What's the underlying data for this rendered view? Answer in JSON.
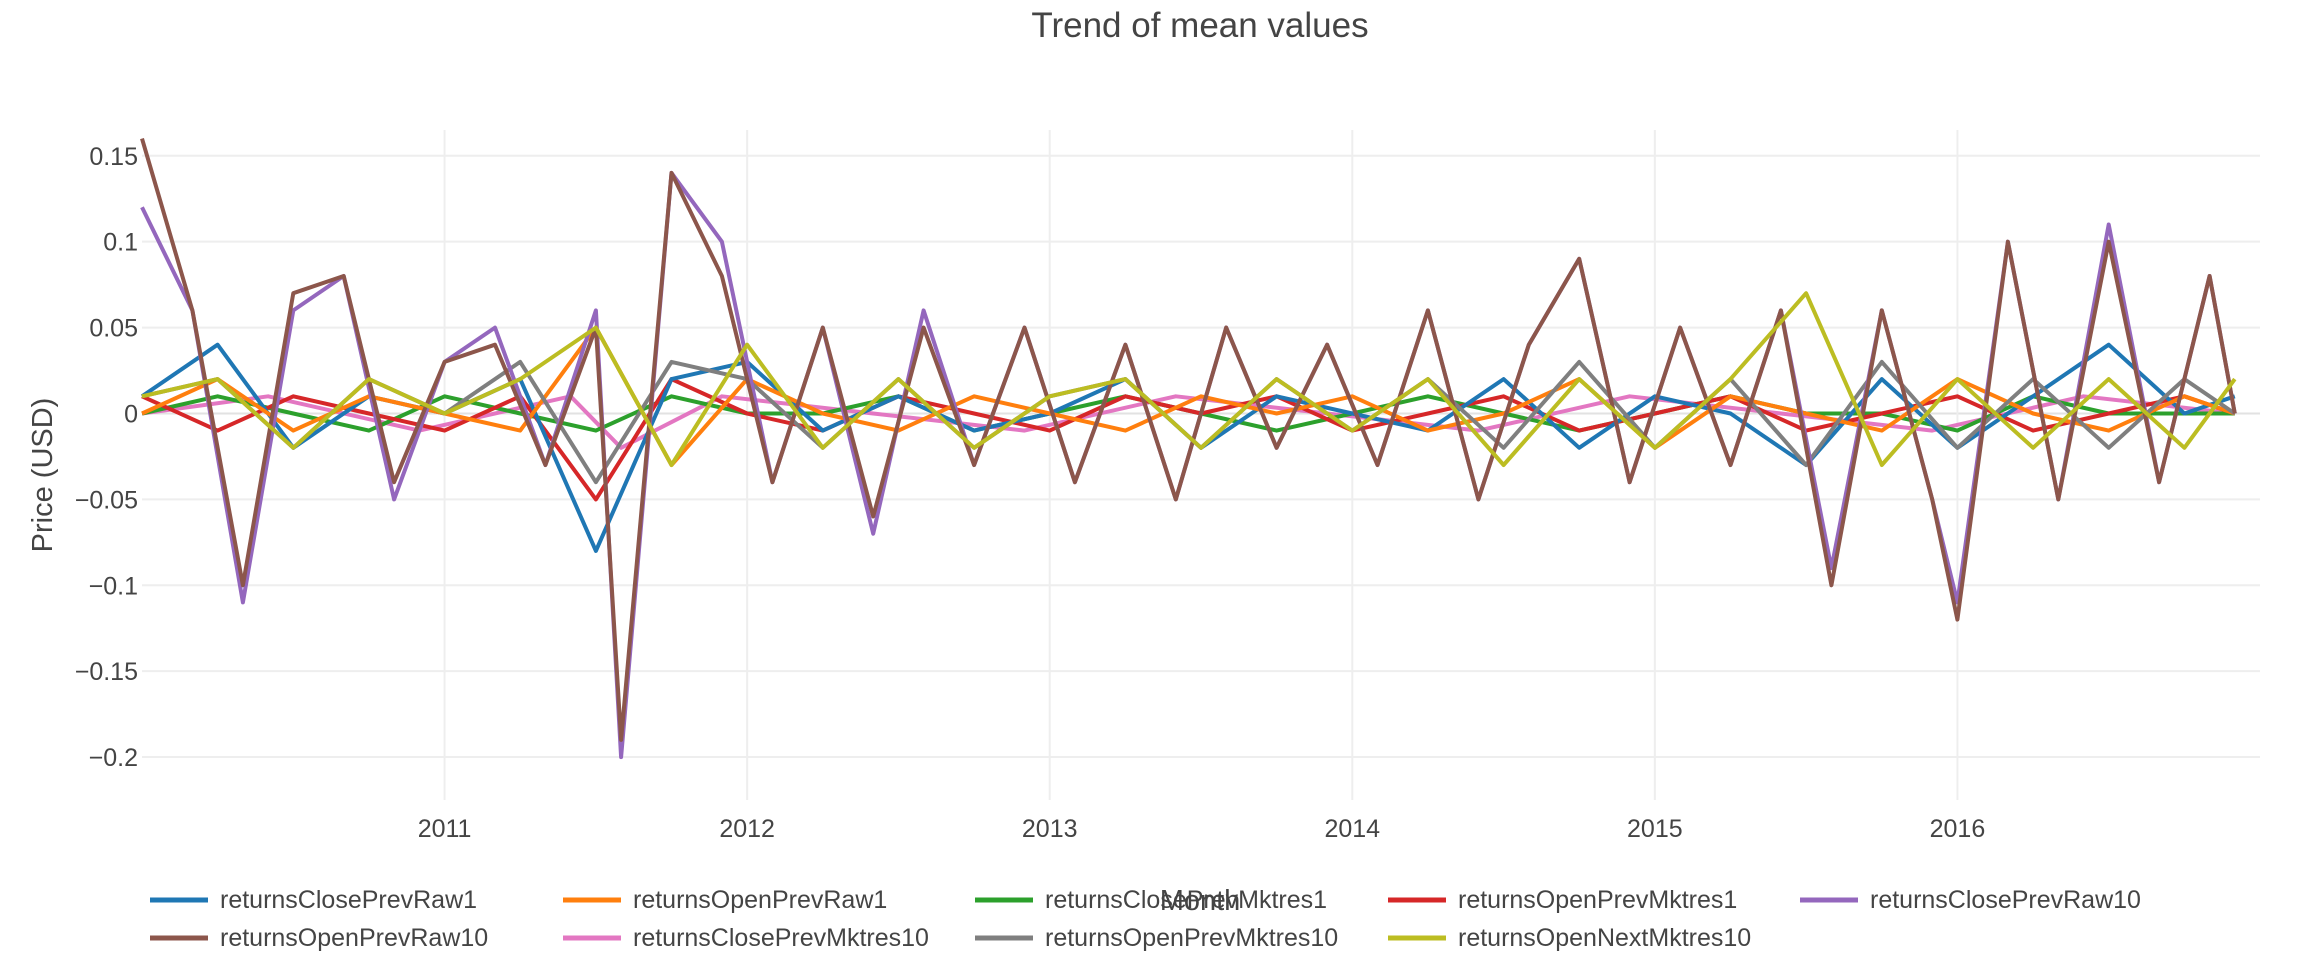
{
  "chart_data": {
    "type": "line",
    "title": "Trend of mean values",
    "xlabel": "Month",
    "ylabel": "Price (USD)",
    "x_range": [
      "2010-01",
      "2016-12"
    ],
    "xtick_labels": [
      "2011",
      "2012",
      "2013",
      "2014",
      "2015",
      "2016"
    ],
    "ylim": [
      -0.225,
      0.165
    ],
    "ytick_values": [
      0.15,
      0.1,
      0.05,
      0,
      -0.05,
      -0.1,
      -0.15,
      -0.2
    ],
    "ytick_labels": [
      "0.15",
      "0.1",
      "0.05",
      "0",
      "−0.05",
      "−0.1",
      "−0.15",
      "−0.2"
    ],
    "grid": true,
    "legend_position": "bottom",
    "series": [
      {
        "name": "returnsClosePrevRaw1",
        "color": "#1f77b4",
        "x": [
          "2010-01",
          "2010-04",
          "2010-07",
          "2010-10",
          "2011-01",
          "2011-04",
          "2011-07",
          "2011-10",
          "2012-01",
          "2012-04",
          "2012-07",
          "2012-10",
          "2013-01",
          "2013-04",
          "2013-07",
          "2013-10",
          "2014-01",
          "2014-04",
          "2014-07",
          "2014-10",
          "2015-01",
          "2015-04",
          "2015-07",
          "2015-10",
          "2016-01",
          "2016-04",
          "2016-07",
          "2016-10",
          "2016-12"
        ],
        "y": [
          0.01,
          0.04,
          -0.02,
          0.01,
          0.0,
          0.02,
          -0.08,
          0.02,
          0.03,
          -0.01,
          0.01,
          -0.01,
          0.0,
          0.02,
          -0.02,
          0.01,
          0.0,
          -0.01,
          0.02,
          -0.02,
          0.01,
          0.0,
          -0.03,
          0.02,
          -0.02,
          0.01,
          0.04,
          0.0,
          0.01
        ]
      },
      {
        "name": "returnsOpenPrevRaw1",
        "color": "#ff7f0e",
        "x": [
          "2010-01",
          "2010-04",
          "2010-07",
          "2010-10",
          "2011-01",
          "2011-04",
          "2011-07",
          "2011-10",
          "2012-01",
          "2012-04",
          "2012-07",
          "2012-10",
          "2013-01",
          "2013-04",
          "2013-07",
          "2013-10",
          "2014-01",
          "2014-04",
          "2014-07",
          "2014-10",
          "2015-01",
          "2015-04",
          "2015-07",
          "2015-10",
          "2016-01",
          "2016-04",
          "2016-07",
          "2016-10",
          "2016-12"
        ],
        "y": [
          0.0,
          0.02,
          -0.01,
          0.01,
          0.0,
          -0.01,
          0.05,
          -0.03,
          0.02,
          0.0,
          -0.01,
          0.01,
          0.0,
          -0.01,
          0.01,
          0.0,
          0.01,
          -0.01,
          0.0,
          0.02,
          -0.02,
          0.01,
          0.0,
          -0.01,
          0.02,
          0.0,
          -0.01,
          0.01,
          0.0
        ]
      },
      {
        "name": "returnsClosePrevMktres1",
        "color": "#2ca02c",
        "x": [
          "2010-01",
          "2010-04",
          "2010-07",
          "2010-10",
          "2011-01",
          "2011-04",
          "2011-07",
          "2011-10",
          "2012-01",
          "2012-04",
          "2012-07",
          "2012-10",
          "2013-01",
          "2013-04",
          "2013-07",
          "2013-10",
          "2014-01",
          "2014-04",
          "2014-07",
          "2014-10",
          "2015-01",
          "2015-04",
          "2015-07",
          "2015-10",
          "2016-01",
          "2016-04",
          "2016-07",
          "2016-10",
          "2016-12"
        ],
        "y": [
          0.0,
          0.01,
          0.0,
          -0.01,
          0.01,
          0.0,
          -0.01,
          0.01,
          0.0,
          0.0,
          0.01,
          -0.01,
          0.0,
          0.01,
          0.0,
          -0.01,
          0.0,
          0.01,
          0.0,
          -0.01,
          0.0,
          0.01,
          0.0,
          0.0,
          -0.01,
          0.01,
          0.0,
          0.0,
          0.0
        ]
      },
      {
        "name": "returnsOpenPrevMktres1",
        "color": "#d62728",
        "x": [
          "2010-01",
          "2010-04",
          "2010-07",
          "2010-10",
          "2011-01",
          "2011-04",
          "2011-07",
          "2011-10",
          "2012-01",
          "2012-04",
          "2012-07",
          "2012-10",
          "2013-01",
          "2013-04",
          "2013-07",
          "2013-10",
          "2014-01",
          "2014-04",
          "2014-07",
          "2014-10",
          "2015-01",
          "2015-04",
          "2015-07",
          "2015-10",
          "2016-01",
          "2016-04",
          "2016-07",
          "2016-10",
          "2016-12"
        ],
        "y": [
          0.01,
          -0.01,
          0.01,
          0.0,
          -0.01,
          0.01,
          -0.05,
          0.02,
          0.0,
          -0.01,
          0.01,
          0.0,
          -0.01,
          0.01,
          0.0,
          0.01,
          -0.01,
          0.0,
          0.01,
          -0.01,
          0.0,
          0.01,
          -0.01,
          0.0,
          0.01,
          -0.01,
          0.0,
          0.01,
          0.0
        ]
      },
      {
        "name": "returnsClosePrevRaw10",
        "color": "#9467bd",
        "x": [
          "2010-01",
          "2010-03",
          "2010-05",
          "2010-07",
          "2010-09",
          "2010-11",
          "2011-01",
          "2011-03",
          "2011-05",
          "2011-07",
          "2011-08",
          "2011-10",
          "2011-12",
          "2012-02",
          "2012-04",
          "2012-06",
          "2012-08",
          "2012-10",
          "2012-12",
          "2013-02",
          "2013-04",
          "2013-06",
          "2013-08",
          "2013-10",
          "2013-12",
          "2014-02",
          "2014-04",
          "2014-06",
          "2014-08",
          "2014-10",
          "2014-12",
          "2015-02",
          "2015-04",
          "2015-06",
          "2015-08",
          "2015-10",
          "2015-12",
          "2016-01",
          "2016-03",
          "2016-05",
          "2016-07",
          "2016-09",
          "2016-11",
          "2016-12"
        ],
        "y": [
          0.12,
          0.06,
          -0.11,
          0.06,
          0.08,
          -0.05,
          0.03,
          0.05,
          -0.03,
          0.06,
          -0.2,
          0.14,
          0.1,
          -0.04,
          0.05,
          -0.07,
          0.06,
          -0.03,
          0.05,
          -0.04,
          0.04,
          -0.05,
          0.05,
          -0.02,
          0.04,
          -0.03,
          0.06,
          -0.05,
          0.04,
          0.09,
          -0.04,
          0.05,
          -0.03,
          0.06,
          -0.09,
          0.06,
          -0.05,
          -0.11,
          0.1,
          -0.05,
          0.11,
          -0.04,
          0.08,
          0.0
        ]
      },
      {
        "name": "returnsOpenPrevRaw10",
        "color": "#8c564b",
        "x": [
          "2010-01",
          "2010-03",
          "2010-05",
          "2010-07",
          "2010-09",
          "2010-11",
          "2011-01",
          "2011-03",
          "2011-05",
          "2011-07",
          "2011-08",
          "2011-10",
          "2011-12",
          "2012-02",
          "2012-04",
          "2012-06",
          "2012-08",
          "2012-10",
          "2012-12",
          "2013-02",
          "2013-04",
          "2013-06",
          "2013-08",
          "2013-10",
          "2013-12",
          "2014-02",
          "2014-04",
          "2014-06",
          "2014-08",
          "2014-10",
          "2014-12",
          "2015-02",
          "2015-04",
          "2015-06",
          "2015-08",
          "2015-10",
          "2015-12",
          "2016-01",
          "2016-03",
          "2016-05",
          "2016-07",
          "2016-09",
          "2016-11",
          "2016-12"
        ],
        "y": [
          0.16,
          0.06,
          -0.1,
          0.07,
          0.08,
          -0.04,
          0.03,
          0.04,
          -0.03,
          0.05,
          -0.19,
          0.14,
          0.08,
          -0.04,
          0.05,
          -0.06,
          0.05,
          -0.03,
          0.05,
          -0.04,
          0.04,
          -0.05,
          0.05,
          -0.02,
          0.04,
          -0.03,
          0.06,
          -0.05,
          0.04,
          0.09,
          -0.04,
          0.05,
          -0.03,
          0.06,
          -0.1,
          0.06,
          -0.05,
          -0.12,
          0.1,
          -0.05,
          0.1,
          -0.04,
          0.08,
          0.0
        ]
      },
      {
        "name": "returnsClosePrevMktres10",
        "color": "#e377c2",
        "x": [
          "2010-01",
          "2010-06",
          "2010-12",
          "2011-06",
          "2011-08",
          "2011-12",
          "2012-06",
          "2012-12",
          "2013-06",
          "2013-12",
          "2014-06",
          "2014-12",
          "2015-06",
          "2015-12",
          "2016-06",
          "2016-12"
        ],
        "y": [
          0.0,
          0.01,
          -0.01,
          0.01,
          -0.02,
          0.01,
          0.0,
          -0.01,
          0.01,
          0.0,
          -0.01,
          0.01,
          0.0,
          -0.01,
          0.01,
          0.0
        ]
      },
      {
        "name": "returnsOpenPrevMktres10",
        "color": "#7f7f7f",
        "x": [
          "2010-01",
          "2010-04",
          "2010-07",
          "2010-10",
          "2011-01",
          "2011-04",
          "2011-07",
          "2011-10",
          "2012-01",
          "2012-04",
          "2012-07",
          "2012-10",
          "2013-01",
          "2013-04",
          "2013-07",
          "2013-10",
          "2014-01",
          "2014-04",
          "2014-07",
          "2014-10",
          "2015-01",
          "2015-04",
          "2015-07",
          "2015-10",
          "2016-01",
          "2016-04",
          "2016-07",
          "2016-10",
          "2016-12"
        ],
        "y": [
          0.01,
          0.02,
          -0.02,
          0.02,
          0.0,
          0.03,
          -0.04,
          0.03,
          0.02,
          -0.02,
          0.02,
          -0.02,
          0.01,
          0.02,
          -0.02,
          0.02,
          -0.01,
          0.02,
          -0.02,
          0.03,
          -0.02,
          0.02,
          -0.03,
          0.03,
          -0.02,
          0.02,
          -0.02,
          0.02,
          0.0
        ]
      },
      {
        "name": "returnsOpenNextMktres10",
        "color": "#bcbd22",
        "x": [
          "2010-01",
          "2010-04",
          "2010-07",
          "2010-10",
          "2011-01",
          "2011-04",
          "2011-07",
          "2011-10",
          "2012-01",
          "2012-04",
          "2012-07",
          "2012-10",
          "2013-01",
          "2013-04",
          "2013-07",
          "2013-10",
          "2014-01",
          "2014-04",
          "2014-07",
          "2014-10",
          "2015-01",
          "2015-04",
          "2015-07",
          "2015-10",
          "2016-01",
          "2016-04",
          "2016-07",
          "2016-10",
          "2016-12"
        ],
        "y": [
          0.01,
          0.02,
          -0.02,
          0.02,
          0.0,
          0.02,
          0.05,
          -0.03,
          0.04,
          -0.02,
          0.02,
          -0.02,
          0.01,
          0.02,
          -0.02,
          0.02,
          -0.01,
          0.02,
          -0.03,
          0.02,
          -0.02,
          0.02,
          0.07,
          -0.03,
          0.02,
          -0.02,
          0.02,
          -0.02,
          0.02
        ]
      }
    ]
  }
}
